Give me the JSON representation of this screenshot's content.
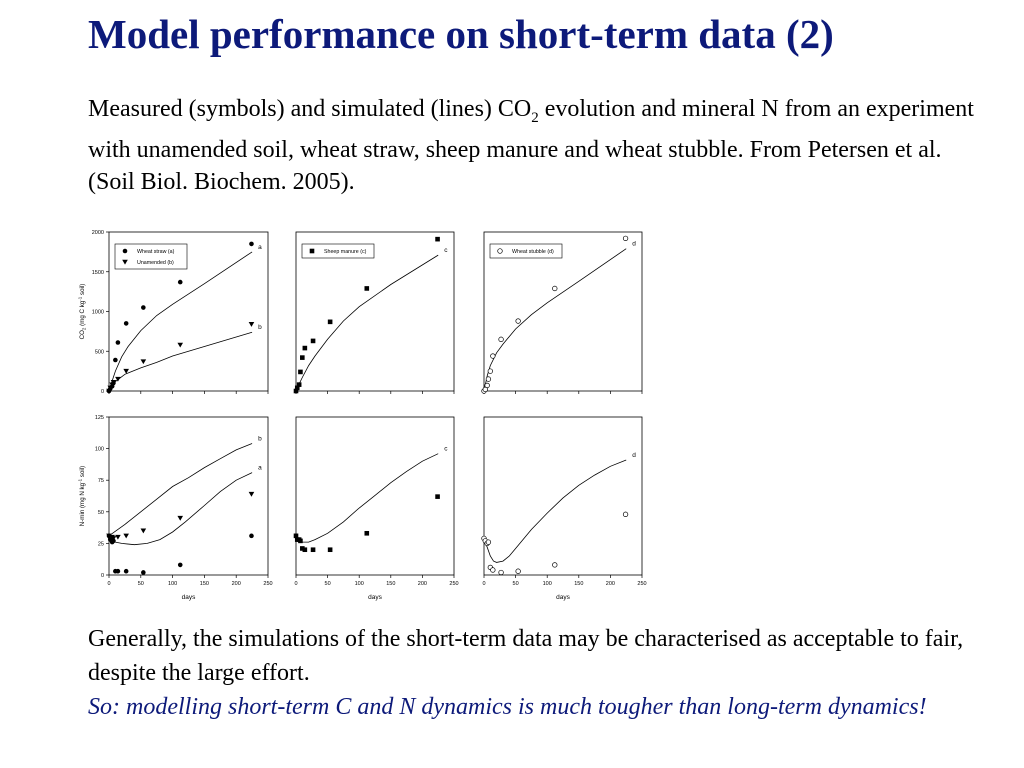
{
  "slide": {
    "title": "Model performance on short-term data (2)",
    "intro": {
      "before_sub": "Measured (symbols) and simulated (lines) CO",
      "sub": "2",
      "after_sub": " evolution and mineral N from an experiment with unamended soil, wheat straw, sheep manure and wheat stubble. From Petersen et al. (Soil Biol. Biochem. 2005)."
    },
    "conclusion": "Generally, the simulations of the short-term data may be characterised as acceptable to fair, despite the large effort.",
    "emphasis": "So: modelling short-term C and N dynamics is much tougher than long-term dynamics!"
  },
  "colors": {
    "title": "#0d1a7a",
    "emphasis": "#0d1a7a",
    "axis": "#000000",
    "marker": "#000000"
  },
  "chart_data": [
    {
      "type": "scatter",
      "panel": "co2-wheat-unamended",
      "ylabel_main": "CO",
      "ylabel_sub": "2",
      "ylabel_rest": " (mg C kg",
      "ylabel_sup": "-1",
      "ylabel_end": " soil)",
      "xlabel": "",
      "xlim": [
        0,
        250
      ],
      "ylim": [
        0,
        2000
      ],
      "yticks": [
        "0",
        "500",
        "1000",
        "1500",
        "2000"
      ],
      "xticks_shown": false,
      "legend": "top-left",
      "series": [
        {
          "name": "Wheat straw (a)",
          "marker": "circle-filled",
          "curve_label": "a",
          "measured": {
            "x": [
              0,
              2,
              5,
              7,
              10,
              14,
              27,
              54,
              112,
              224
            ],
            "y": [
              0,
              30,
              60,
              100,
              390,
              610,
              850,
              1050,
              1370,
              1850
            ]
          },
          "simulated": {
            "x": [
              0,
              5,
              10,
              20,
              30,
              50,
              75,
              100,
              150,
              225
            ],
            "y": [
              0,
              130,
              250,
              430,
              560,
              760,
              950,
              1090,
              1350,
              1750
            ]
          }
        },
        {
          "name": "Unamended (b)",
          "marker": "triangle-down-filled",
          "curve_label": "b",
          "measured": {
            "x": [
              0,
              2,
              5,
              7,
              14,
              27,
              54,
              112,
              224
            ],
            "y": [
              0,
              40,
              80,
              110,
              150,
              250,
              370,
              580,
              840
            ]
          },
          "simulated": {
            "x": [
              0,
              10,
              25,
              50,
              75,
              100,
              150,
              225
            ],
            "y": [
              0,
              120,
              210,
              290,
              360,
              440,
              560,
              740
            ]
          }
        }
      ]
    },
    {
      "type": "scatter",
      "panel": "co2-sheep-manure",
      "xlim": [
        0,
        250
      ],
      "ylim": [
        0,
        2000
      ],
      "xticks_shown": false,
      "legend": "top-left",
      "series": [
        {
          "name": "Sheep manure (c)",
          "marker": "square-filled",
          "curve_label": "c",
          "measured": {
            "x": [
              0,
              2,
              5,
              7,
              10,
              14,
              27,
              54,
              112,
              224
            ],
            "y": [
              0,
              40,
              80,
              240,
              420,
              540,
              630,
              870,
              1290,
              1910
            ]
          },
          "simulated": {
            "x": [
              0,
              5,
              10,
              20,
              30,
              50,
              75,
              100,
              150,
              225
            ],
            "y": [
              0,
              90,
              170,
              320,
              440,
              650,
              880,
              1060,
              1340,
              1710
            ]
          }
        }
      ]
    },
    {
      "type": "scatter",
      "panel": "co2-wheat-stubble",
      "xlim": [
        0,
        250
      ],
      "ylim": [
        0,
        2000
      ],
      "xticks_shown": false,
      "legend": "top-left",
      "series": [
        {
          "name": "Wheat stubble (d)",
          "marker": "circle-open",
          "curve_label": "d",
          "measured": {
            "x": [
              0,
              2,
              5,
              7,
              10,
              14,
              27,
              54,
              112,
              224
            ],
            "y": [
              0,
              20,
              70,
              150,
              250,
              440,
              650,
              880,
              1290,
              1920
            ]
          },
          "simulated": {
            "x": [
              0,
              5,
              10,
              20,
              30,
              50,
              75,
              100,
              150,
              225
            ],
            "y": [
              0,
              190,
              320,
              480,
              590,
              780,
              960,
              1110,
              1380,
              1790
            ]
          }
        }
      ]
    },
    {
      "type": "scatter",
      "panel": "nmin-wheat-unamended",
      "ylabel_main": "N-min (mg N kg",
      "ylabel_sup": "-1",
      "ylabel_end": " soil)",
      "xlabel": "days",
      "xlim": [
        0,
        250
      ],
      "ylim": [
        0,
        125
      ],
      "xticks": [
        "0",
        "50",
        "100",
        "150",
        "200",
        "250"
      ],
      "yticks": [
        "0",
        "25",
        "50",
        "75",
        "100",
        "125"
      ],
      "series": [
        {
          "name": "Wheat straw (a)",
          "marker": "circle-filled",
          "curve_label": "a",
          "measured": {
            "x": [
              0,
              2,
              5,
              7,
              10,
              14,
              27,
              54,
              112,
              224
            ],
            "y": [
              31,
              28,
              26,
              27,
              3,
              3,
              3,
              2,
              8,
              31
            ]
          },
          "simulated": {
            "x": [
              0,
              3,
              6,
              10,
              20,
              40,
              60,
              80,
              100,
              120,
              150,
              175,
              200,
              225
            ],
            "y": [
              31,
              29,
              27,
              26,
              25,
              24,
              25,
              28,
              34,
              42,
              55,
              66,
              75,
              81
            ]
          }
        },
        {
          "name": "Unamended (b)",
          "marker": "triangle-down-filled",
          "curve_label": "b",
          "measured": {
            "x": [
              0,
              2,
              5,
              7,
              14,
              27,
              54,
              112,
              224
            ],
            "y": [
              31,
              28,
              30,
              29,
              30,
              31,
              35,
              45,
              64
            ]
          },
          "simulated": {
            "x": [
              0,
              25,
              50,
              75,
              100,
              125,
              150,
              175,
              200,
              225
            ],
            "y": [
              31,
              40,
              50,
              60,
              70,
              77,
              85,
              92,
              99,
              104
            ]
          }
        }
      ]
    },
    {
      "type": "scatter",
      "panel": "nmin-sheep-manure",
      "xlabel": "days",
      "xlim": [
        0,
        250
      ],
      "ylim": [
        0,
        125
      ],
      "xticks": [
        "0",
        "50",
        "100",
        "150",
        "200",
        "250"
      ],
      "series": [
        {
          "name": "Sheep manure (c)",
          "marker": "square-filled",
          "curve_label": "c",
          "measured": {
            "x": [
              0,
              2,
              5,
              7,
              10,
              14,
              27,
              54,
              112,
              224
            ],
            "y": [
              31,
              28,
              28,
              27,
              21,
              20,
              20,
              20,
              33,
              62
            ]
          },
          "simulated": {
            "x": [
              0,
              5,
              10,
              20,
              30,
              50,
              75,
              100,
              125,
              150,
              175,
              200,
              225
            ],
            "y": [
              30,
              27,
              26,
              26,
              28,
              33,
              42,
              53,
              63,
              73,
              82,
              90,
              96
            ]
          }
        }
      ]
    },
    {
      "type": "scatter",
      "panel": "nmin-wheat-stubble",
      "xlabel": "days",
      "xlim": [
        0,
        250
      ],
      "ylim": [
        0,
        125
      ],
      "xticks": [
        "0",
        "50",
        "100",
        "150",
        "200",
        "250"
      ],
      "series": [
        {
          "name": "Wheat stubble (d)",
          "marker": "circle-open",
          "curve_label": "d",
          "measured": {
            "x": [
              0,
              2,
              5,
              7,
              10,
              14,
              27,
              54,
              112,
              224
            ],
            "y": [
              29,
              27,
              25,
              26,
              6,
              4,
              2,
              3,
              8,
              48
            ]
          },
          "simulated": {
            "x": [
              0,
              5,
              10,
              15,
              20,
              30,
              40,
              50,
              75,
              100,
              125,
              150,
              175,
              200,
              225
            ],
            "y": [
              28,
              22,
              15,
              11,
              10,
              11,
              15,
              21,
              36,
              49,
              61,
              71,
              79,
              86,
              91
            ]
          }
        }
      ]
    }
  ]
}
